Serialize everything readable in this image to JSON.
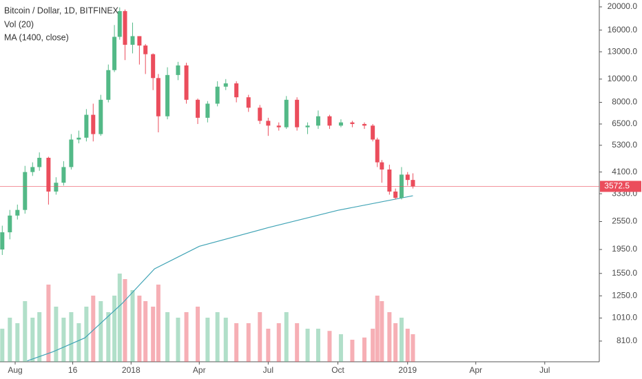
{
  "chart_data": {
    "type": "candlestick",
    "title": "Bitcoin / Dollar, 1D, BITFINEX",
    "indicators": [
      "Vol (20)",
      "MA (1400, close)"
    ],
    "log_scale": true,
    "up_color": "#53b987",
    "down_color": "#eb4d5c",
    "x": [
      "2017-07-15",
      "2017-07-25",
      "2017-08-04",
      "2017-08-14",
      "2017-08-24",
      "2017-09-02",
      "2017-09-14",
      "2017-09-24",
      "2017-10-04",
      "2017-10-14",
      "2017-10-24",
      "2017-11-03",
      "2017-11-12",
      "2017-11-22",
      "2017-12-02",
      "2017-12-10",
      "2017-12-17",
      "2017-12-24",
      "2018-01-03",
      "2018-01-12",
      "2018-01-20",
      "2018-01-30",
      "2018-02-06",
      "2018-02-18",
      "2018-03-04",
      "2018-03-15",
      "2018-03-30",
      "2018-04-12",
      "2018-04-25",
      "2018-05-06",
      "2018-05-20",
      "2018-06-05",
      "2018-06-20",
      "2018-07-01",
      "2018-07-15",
      "2018-07-25",
      "2018-08-08",
      "2018-08-22",
      "2018-09-05",
      "2018-09-20",
      "2018-10-05",
      "2018-10-20",
      "2018-11-05",
      "2018-11-16",
      "2018-11-22",
      "2018-11-28",
      "2018-12-08",
      "2018-12-16",
      "2018-12-24",
      "2019-01-01",
      "2019-01-08"
    ],
    "open": [
      1950,
      2300,
      2700,
      2850,
      4100,
      4300,
      4700,
      3400,
      3700,
      4300,
      5600,
      5700,
      7100,
      5900,
      8200,
      10900,
      15000,
      19200,
      13900,
      15100,
      13800,
      12700,
      10100,
      7000,
      10400,
      11400,
      8200,
      6900,
      7900,
      9300,
      9600,
      8400,
      7600,
      6700,
      6400,
      6300,
      8200,
      6300,
      6400,
      7000,
      6400,
      6600,
      6500,
      6400,
      5600,
      4500,
      4200,
      3400,
      3200,
      4000,
      3800
    ],
    "high": [
      2450,
      2850,
      3000,
      4350,
      4500,
      4950,
      4750,
      3900,
      4550,
      5900,
      6100,
      7500,
      7900,
      8600,
      11500,
      16800,
      19900,
      19500,
      17200,
      15100,
      14000,
      12800,
      10500,
      11200,
      11800,
      11700,
      8300,
      8100,
      9800,
      10000,
      9800,
      8600,
      7800,
      6900,
      6600,
      8500,
      8400,
      6600,
      7400,
      7100,
      6800,
      6700,
      6600,
      6500,
      5700,
      4600,
      4400,
      3500,
      4300,
      4100,
      4050
    ],
    "low": [
      1850,
      2150,
      2600,
      2750,
      3950,
      4150,
      3000,
      3300,
      3600,
      4200,
      5400,
      5500,
      5500,
      5800,
      8000,
      10700,
      14600,
      12000,
      12800,
      11500,
      10500,
      9000,
      6000,
      6800,
      9900,
      7900,
      6500,
      6600,
      7700,
      9000,
      8000,
      7300,
      6500,
      5800,
      6100,
      6200,
      6100,
      5900,
      6200,
      6200,
      6300,
      6300,
      6200,
      5500,
      4300,
      3700,
      3300,
      3150,
      3150,
      3600,
      3500
    ],
    "close": [
      2300,
      2700,
      2850,
      4100,
      4300,
      4700,
      3400,
      3700,
      4300,
      5600,
      5700,
      7100,
      5900,
      8200,
      10900,
      15000,
      19200,
      13900,
      15100,
      13800,
      12700,
      10100,
      7000,
      10400,
      11400,
      8200,
      6900,
      7900,
      9300,
      9600,
      8400,
      7600,
      6700,
      6400,
      6300,
      8200,
      6300,
      6400,
      7000,
      6400,
      6600,
      6500,
      6400,
      5600,
      4500,
      4200,
      3400,
      3200,
      4000,
      3800,
      3572.5
    ],
    "volume": [
      30,
      40,
      35,
      55,
      40,
      45,
      70,
      50,
      40,
      45,
      35,
      50,
      60,
      55,
      45,
      60,
      80,
      75,
      65,
      60,
      55,
      50,
      70,
      45,
      40,
      45,
      50,
      40,
      45,
      40,
      35,
      35,
      45,
      30,
      35,
      45,
      35,
      30,
      30,
      28,
      25,
      20,
      22,
      30,
      60,
      55,
      45,
      35,
      40,
      30,
      25
    ],
    "y2lim": [
      0,
      100
    ],
    "ma": {
      "color": "#3fa3b5",
      "x": [
        "2017-08-17",
        "2017-09-20",
        "2017-11-01",
        "2017-12-20",
        "2018-02-01",
        "2018-04-01",
        "2018-07-01",
        "2018-10-01",
        "2019-01-08"
      ],
      "values": [
        670,
        731,
        835,
        1160,
        1620,
        2010,
        2405,
        2840,
        3265
      ]
    },
    "last_price": 3572.5,
    "ylim": [
      664,
      21360
    ],
    "yticks": [
      {
        "value": 20000,
        "label": "20000.0"
      },
      {
        "value": 16000,
        "label": "16000.0"
      },
      {
        "value": 13000,
        "label": "13000.0"
      },
      {
        "value": 10000,
        "label": "10000.0"
      },
      {
        "value": 8000,
        "label": "8000.0"
      },
      {
        "value": 6500,
        "label": "6500.0"
      },
      {
        "value": 5300,
        "label": "5300.0"
      },
      {
        "value": 4100,
        "label": "4100.0"
      },
      {
        "value": 3330,
        "label": "3330.0"
      },
      {
        "value": 2550,
        "label": "2550.0"
      },
      {
        "value": 1950,
        "label": "1950.0"
      },
      {
        "value": 1550,
        "label": "1550.0"
      },
      {
        "value": 1250,
        "label": "1250.0"
      },
      {
        "value": 1010,
        "label": "1010.0"
      },
      {
        "value": 810,
        "label": "810.0"
      }
    ],
    "xlim": [
      "2017-07-12",
      "2019-09-11"
    ],
    "xticks": [
      {
        "value": "2017-08-01",
        "label": "Aug"
      },
      {
        "value": "2017-10-16",
        "label": "16"
      },
      {
        "value": "2018-01-01",
        "label": "2018"
      },
      {
        "value": "2018-04-01",
        "label": "Apr"
      },
      {
        "value": "2018-07-01",
        "label": "Jul"
      },
      {
        "value": "2018-10-01",
        "label": "Oct"
      },
      {
        "value": "2019-01-01",
        "label": "2019"
      },
      {
        "value": "2019-04-01",
        "label": "Apr"
      },
      {
        "value": "2019-07-01",
        "label": "Jul"
      }
    ]
  }
}
